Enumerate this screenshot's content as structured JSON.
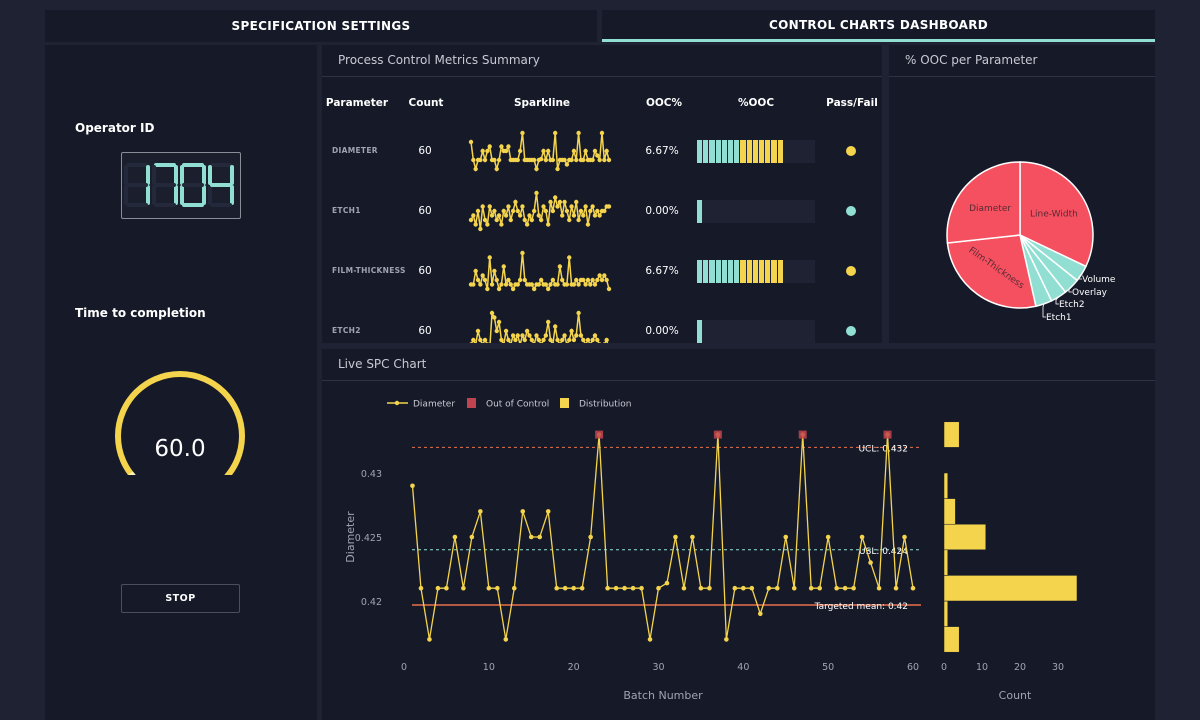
{
  "tabs": [
    {
      "label": "SPECIFICATION SETTINGS",
      "active": false
    },
    {
      "label": "CONTROL CHARTS DASHBOARD",
      "active": true
    }
  ],
  "left": {
    "operator_label": "Operator ID",
    "operator_id": "1704",
    "time_label": "Time to completion",
    "gauge_value": "60.0",
    "gauge_level": 1.0,
    "stop_label": "STOP"
  },
  "metrics": {
    "title": "Process Control Metrics Summary",
    "headers": [
      "Parameter",
      "Count",
      "Sparkline",
      "OOC%",
      "%OOC",
      "Pass/Fail"
    ],
    "rows": [
      {
        "parameter": "DIAMETER",
        "count": "60",
        "ooc": "6.67%",
        "ooc_bar_level": 0.74,
        "status_color": "#f4d44d",
        "spark": [
          0.429,
          0.421,
          0.417,
          0.421,
          0.421,
          0.425,
          0.421,
          0.425,
          0.427,
          0.421,
          0.421,
          0.417,
          0.421,
          0.427,
          0.425,
          0.425,
          0.427,
          0.421,
          0.421,
          0.421,
          0.421,
          0.425,
          0.433,
          0.421,
          0.421,
          0.421,
          0.421,
          0.421,
          0.417,
          0.421,
          0.4214,
          0.425,
          0.421,
          0.425,
          0.421,
          0.421,
          0.433,
          0.417,
          0.421,
          0.421,
          0.421,
          0.419,
          0.421,
          0.421,
          0.425,
          0.421,
          0.433,
          0.421,
          0.421,
          0.425,
          0.421,
          0.421,
          0.421,
          0.425,
          0.423,
          0.421,
          0.433,
          0.421,
          0.425,
          0.421
        ]
      },
      {
        "parameter": "ETCH1",
        "count": "60",
        "ooc": "0.00%",
        "ooc_bar_level": 0.05,
        "status_color": "#91dfd2",
        "spark": [
          3,
          4,
          2,
          5,
          1,
          6,
          3,
          2,
          6,
          4,
          5,
          3,
          4,
          2,
          5,
          4,
          6,
          3,
          5,
          7,
          5,
          4,
          6,
          3,
          2,
          4,
          3,
          5,
          9,
          4,
          3,
          6,
          5,
          2,
          7,
          5,
          8,
          6,
          7,
          4,
          7,
          5,
          3,
          6,
          4,
          7,
          3,
          5,
          4,
          6,
          2,
          5,
          6,
          4,
          5,
          4,
          5,
          5,
          6,
          6
        ]
      },
      {
        "parameter": "FILM-THICKNESS",
        "count": "60",
        "ooc": "6.67%",
        "ooc_bar_level": 0.74,
        "status_color": "#f4d44d",
        "spark": [
          2,
          2,
          5,
          3,
          2,
          4,
          3,
          1,
          8,
          2,
          5,
          3,
          1,
          2,
          6,
          2,
          3,
          2,
          1,
          2,
          2,
          3,
          9,
          3,
          2,
          2,
          2,
          1,
          2,
          2,
          3,
          2,
          2,
          1,
          2,
          3,
          2,
          2,
          6,
          3,
          2,
          2,
          8,
          2,
          2,
          3,
          2,
          3,
          3,
          2,
          3,
          2,
          3,
          2,
          3,
          4,
          3,
          4,
          3,
          1
        ]
      },
      {
        "parameter": "ETCH2",
        "count": "60",
        "ooc": "0.00%",
        "ooc_bar_level": 0.05,
        "status_color": "#91dfd2",
        "spark": [
          2,
          3,
          2,
          5,
          3,
          2,
          3,
          2,
          1,
          9,
          8,
          5,
          7,
          3,
          2,
          5,
          3,
          2,
          4,
          3,
          4,
          2,
          4,
          3,
          5,
          4,
          3,
          2,
          4,
          3,
          2,
          3,
          4,
          7,
          3,
          2,
          6,
          3,
          2,
          3,
          4,
          2,
          3,
          5,
          3,
          4,
          9,
          4,
          3,
          2,
          3,
          2,
          3,
          4,
          3,
          2,
          1,
          2,
          3,
          1
        ]
      }
    ]
  },
  "pie": {
    "title": "% OOC per Parameter",
    "slices": [
      {
        "label": "Line-Width",
        "value": 8.0,
        "color": "#f45060"
      },
      {
        "label": "Volume",
        "value": 0.9,
        "color": "#91dfd2"
      },
      {
        "label": "Overlay",
        "value": 0.9,
        "color": "#91dfd2"
      },
      {
        "label": "Etch2",
        "value": 0.9,
        "color": "#91dfd2"
      },
      {
        "label": "Etch1",
        "value": 0.9,
        "color": "#91dfd2"
      },
      {
        "label": "Film-Thickness",
        "value": 6.67,
        "color": "#f45060"
      },
      {
        "label": "Diameter",
        "value": 6.67,
        "color": "#f45060"
      }
    ]
  },
  "spc": {
    "title": "Live SPC Chart"
  },
  "chart_data": [
    {
      "type": "line",
      "xlabel": "Batch Number",
      "ylabel": "Diameter",
      "xlim": [
        0,
        60
      ],
      "ylim": [
        0.4156,
        0.4344
      ],
      "xticks": [
        0,
        10,
        20,
        30,
        40,
        50,
        60
      ],
      "yticks": [
        0.42,
        0.425,
        0.43
      ],
      "legend": [
        "Diameter",
        "Out of Control",
        "Distribution"
      ],
      "legend_position": "top-left",
      "series": [
        {
          "name": "Diameter",
          "x": [
            1,
            2,
            3,
            4,
            5,
            6,
            7,
            8,
            9,
            10,
            11,
            12,
            13,
            14,
            15,
            16,
            17,
            18,
            19,
            20,
            21,
            22,
            23,
            24,
            25,
            26,
            27,
            28,
            29,
            30,
            31,
            32,
            33,
            34,
            35,
            36,
            37,
            38,
            39,
            40,
            41,
            42,
            43,
            44,
            45,
            46,
            47,
            48,
            49,
            50,
            51,
            52,
            53,
            54,
            55,
            56,
            57,
            58,
            59,
            60
          ],
          "y": [
            0.429,
            0.421,
            0.417,
            0.421,
            0.421,
            0.425,
            0.421,
            0.425,
            0.427,
            0.421,
            0.421,
            0.417,
            0.421,
            0.427,
            0.425,
            0.425,
            0.427,
            0.421,
            0.421,
            0.421,
            0.421,
            0.425,
            0.433,
            0.421,
            0.421,
            0.421,
            0.421,
            0.421,
            0.417,
            0.421,
            0.4214,
            0.425,
            0.421,
            0.425,
            0.421,
            0.421,
            0.433,
            0.417,
            0.421,
            0.421,
            0.421,
            0.419,
            0.421,
            0.421,
            0.425,
            0.421,
            0.433,
            0.421,
            0.421,
            0.425,
            0.421,
            0.421,
            0.421,
            0.425,
            0.423,
            0.421,
            0.433,
            0.421,
            0.425,
            0.421
          ]
        }
      ],
      "out_of_control_x": [
        23,
        37,
        47,
        57
      ],
      "reference_lines": [
        {
          "label": "UCL: 0.432",
          "value": 0.432,
          "color": "#e8704a",
          "style": "dotted"
        },
        {
          "label": "USL: 0.424",
          "value": 0.424,
          "color": "#91dfd2",
          "style": "dotted"
        },
        {
          "label": "Targeted mean: 0.42",
          "value": 0.42,
          "color": "#e8704a",
          "style": "solid"
        }
      ],
      "colors": {
        "line": "#f4d44d",
        "ooc": "#c0444f"
      }
    },
    {
      "type": "bar",
      "orientation": "horizontal",
      "xlabel": "Count",
      "xticks": [
        0,
        10,
        20,
        30
      ],
      "xlim": [
        0,
        37
      ],
      "bin_edges": [
        0.416,
        0.418,
        0.42,
        0.422,
        0.424,
        0.426,
        0.428,
        0.43,
        0.432,
        0.434
      ],
      "values": [
        4,
        1,
        35,
        1,
        11,
        3,
        1,
        0,
        4
      ],
      "color": "#f4d44d"
    }
  ]
}
